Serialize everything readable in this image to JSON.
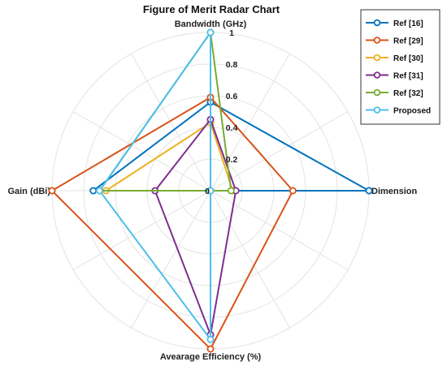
{
  "chart_data": {
    "type": "radar",
    "title": "Figure of Merit Radar Chart",
    "axes": [
      "Bandwidth (GHz)",
      "Dimension",
      "Avearage Efficiency (%)",
      "Gain (dBi)"
    ],
    "rlim": [
      0,
      1
    ],
    "rticks": [
      0,
      0.2,
      0.4,
      0.6,
      0.8,
      1
    ],
    "rtick_labels": [
      "0",
      "0.2",
      "0.4",
      "0.6",
      "0.8",
      "1"
    ],
    "grid": true,
    "legend_position": "top-right",
    "series": [
      {
        "name": "Ref [16]",
        "color": "#0072BD",
        "values": [
          0.56,
          1.0,
          0.0,
          0.74
        ]
      },
      {
        "name": "Ref [29]",
        "color": "#D95319",
        "values": [
          0.59,
          0.52,
          1.0,
          1.0
        ]
      },
      {
        "name": "Ref [30]",
        "color": "#EDB120",
        "values": [
          0.43,
          0.14,
          0.0,
          0.66
        ]
      },
      {
        "name": "Ref [31]",
        "color": "#7E2F8E",
        "values": [
          0.45,
          0.16,
          0.91,
          0.35
        ]
      },
      {
        "name": "Ref [32]",
        "color": "#77AC30",
        "values": [
          1.0,
          0.13,
          0.0,
          0.7
        ]
      },
      {
        "name": "Proposed",
        "color": "#4DBEEE",
        "values": [
          1.0,
          0.0,
          0.94,
          0.7
        ]
      }
    ]
  }
}
